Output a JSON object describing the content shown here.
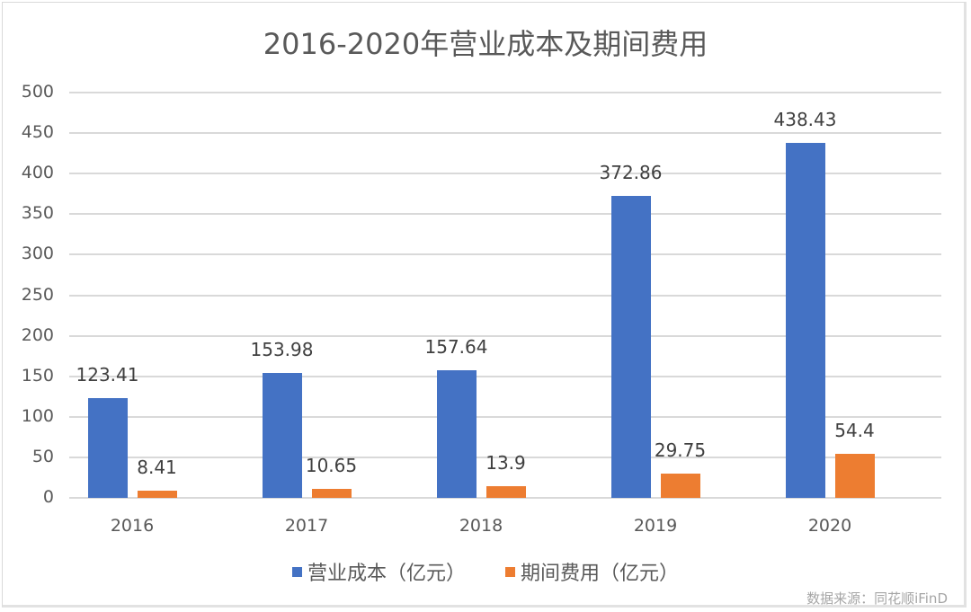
{
  "chart_data": {
    "type": "bar",
    "title": "2016-2020年营业成本及期间费用",
    "categories": [
      "2016",
      "2017",
      "2018",
      "2019",
      "2020"
    ],
    "series": [
      {
        "name": "营业成本（亿元）",
        "color": "#4472c4",
        "values": [
          123.41,
          153.98,
          157.64,
          372.86,
          438.43
        ]
      },
      {
        "name": "期间费用（亿元）",
        "color": "#ed7d31",
        "values": [
          8.41,
          10.65,
          13.9,
          29.75,
          54.4
        ]
      }
    ],
    "data_labels": [
      [
        "123.41",
        "153.98",
        "157.64",
        "372.86",
        "438.43"
      ],
      [
        "8.41",
        "10.65",
        "13.9",
        "29.75",
        "54.4"
      ]
    ],
    "xlabel": "",
    "ylabel": "",
    "ylim": [
      0,
      500
    ],
    "yticks": [
      "0",
      "50",
      "100",
      "150",
      "200",
      "250",
      "300",
      "350",
      "400",
      "450",
      "500"
    ],
    "grid": true,
    "legend_position": "bottom"
  },
  "legend": {
    "items": [
      {
        "label": "营业成本（亿元）",
        "color": "#4472c4"
      },
      {
        "label": "期间费用（亿元）",
        "color": "#ed7d31"
      }
    ]
  },
  "source": "数据来源：同花顺iFinD"
}
